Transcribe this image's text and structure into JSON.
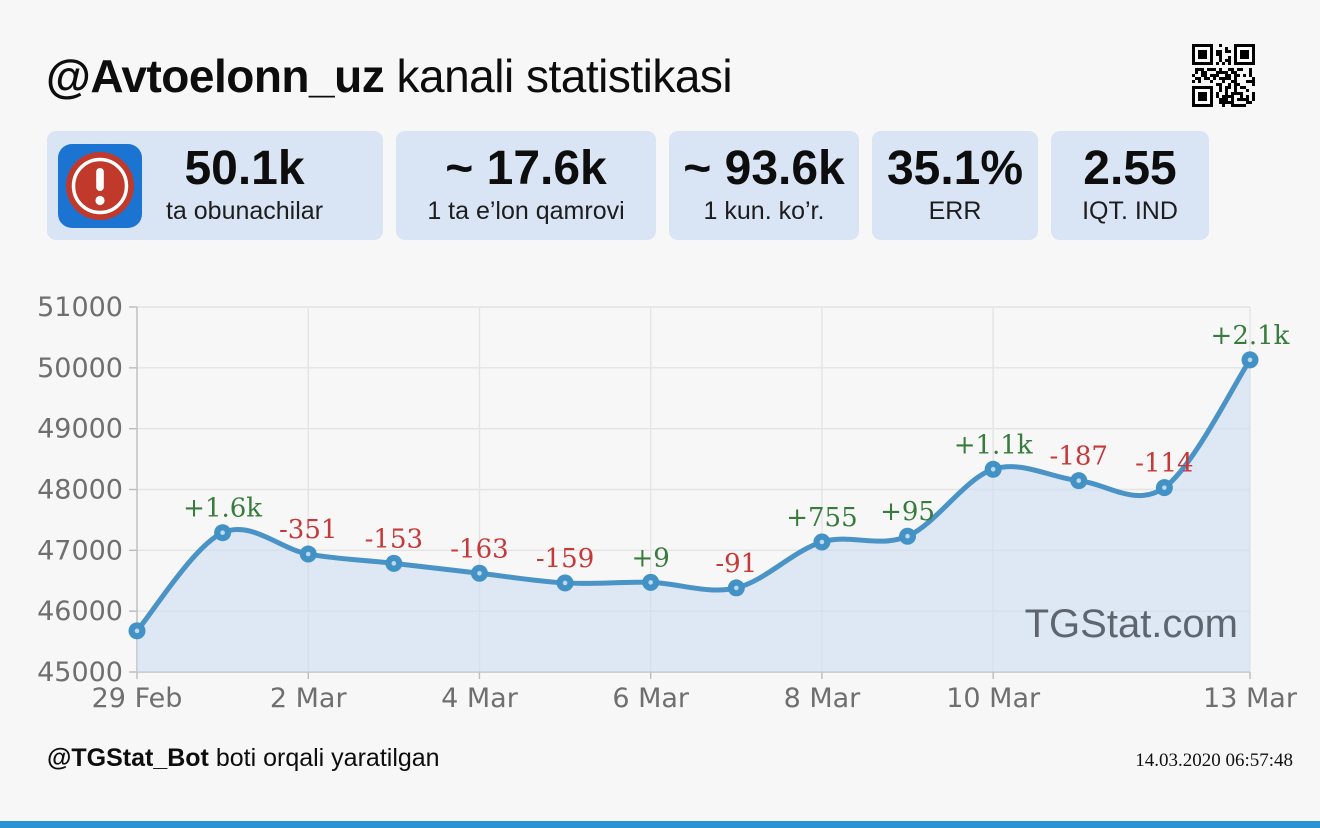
{
  "header": {
    "channel": "@Avtoelonn_uz",
    "title_suffix": " kanali statistikasi"
  },
  "stats": [
    {
      "value": "50.1k",
      "label": "ta obunachilar"
    },
    {
      "value": "~ 17.6k",
      "label": "1 ta e’lon qamrovi"
    },
    {
      "value": "~ 93.6k",
      "label": "1 kun. ko’r."
    },
    {
      "value": "35.1%",
      "label": "ERR"
    },
    {
      "value": "2.55",
      "label": "IQT. IND"
    }
  ],
  "chart_data": {
    "type": "line",
    "title": "",
    "xlabel": "",
    "ylabel": "",
    "x": [
      "29 Feb",
      "1 Mar",
      "2 Mar",
      "3 Mar",
      "4 Mar",
      "5 Mar",
      "6 Mar",
      "7 Mar",
      "8 Mar",
      "9 Mar",
      "10 Mar",
      "11 Mar",
      "12 Mar",
      "13 Mar"
    ],
    "values": [
      45677,
      47290,
      46939,
      46786,
      46623,
      46464,
      46473,
      46382,
      47137,
      47232,
      48332,
      48145,
      48031,
      50131
    ],
    "annotations": [
      null,
      "+1.6k",
      "-351",
      "-153",
      "-163",
      "-159",
      "+9",
      "-91",
      "+755",
      "+95",
      "+1.1k",
      "-187",
      "-114",
      "+2.1k"
    ],
    "x_tick_labels": [
      "29 Feb",
      "2 Mar",
      "4 Mar",
      "6 Mar",
      "8 Mar",
      "10 Mar",
      "13 Mar"
    ],
    "x_tick_indices": [
      0,
      2,
      4,
      6,
      8,
      10,
      13
    ],
    "y_ticks": [
      45000,
      46000,
      47000,
      48000,
      49000,
      50000,
      51000
    ],
    "ylim": [
      45000,
      51000
    ],
    "grid": true,
    "legend": "none",
    "watermark": "TGStat.com",
    "line_color": "#4a93c6",
    "marker_color": "#4292c6",
    "marker_dot_color": "#bcd9ee",
    "area_color": "#c9dcf3",
    "positive_color": "#377c3d",
    "negative_color": "#c63939"
  },
  "footer": {
    "bot_handle": "@TGStat_Bot",
    "suffix": " boti orqali yaratilgan",
    "timestamp": "14.03.2020 06:57:48"
  },
  "icons": {
    "avatar": "alert-exclamation-avatar",
    "qr": "qr-code"
  },
  "colors": {
    "background": "#f7f7f7",
    "card_bg": "#d9e4f5",
    "accent_bar": "#2a93d5",
    "avatar_blue": "#1b74d2",
    "avatar_red": "#c0392b"
  }
}
